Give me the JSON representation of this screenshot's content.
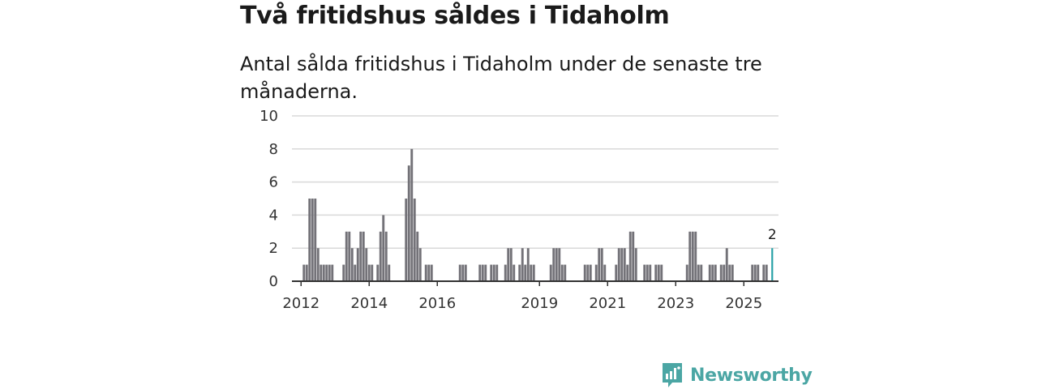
{
  "header": {
    "title": "Två fritidshus såldes i Tidaholm",
    "subtitle": "Antal sålda fritidshus i Tidaholm under de senaste tre månaderna."
  },
  "brand": {
    "name": "Newsworthy"
  },
  "colors": {
    "bar": "#737278",
    "highlight": "#2aa3a8",
    "grid": "#d9d9d9",
    "axis": "#333333",
    "brand": "#4ba6a4"
  },
  "chart_data": {
    "type": "bar",
    "title": "Två fritidshus såldes i Tidaholm",
    "subtitle": "Antal sålda fritidshus i Tidaholm under de senaste tre månaderna.",
    "xlabel": "",
    "ylabel": "",
    "ylim": [
      0,
      10
    ],
    "yticks": [
      0,
      2,
      4,
      6,
      8,
      10
    ],
    "x_tick_labels": [
      "2012",
      "2014",
      "2016",
      "2019",
      "2021",
      "2023",
      "2025"
    ],
    "x_tick_months": [
      1,
      25,
      49,
      85,
      109,
      133,
      157
    ],
    "start": "2012-01",
    "months_count": 168,
    "grid": true,
    "values": [
      0,
      0,
      1,
      1,
      5,
      5,
      5,
      2,
      1,
      1,
      1,
      1,
      1,
      0,
      0,
      0,
      1,
      3,
      3,
      2,
      1,
      2,
      3,
      3,
      2,
      1,
      1,
      0,
      1,
      3,
      4,
      3,
      1,
      0,
      0,
      0,
      0,
      0,
      5,
      7,
      8,
      5,
      3,
      2,
      0,
      1,
      1,
      1,
      0,
      0,
      0,
      0,
      0,
      0,
      0,
      0,
      0,
      1,
      1,
      1,
      0,
      0,
      0,
      0,
      1,
      1,
      1,
      0,
      1,
      1,
      1,
      0,
      0,
      1,
      2,
      2,
      1,
      0,
      1,
      2,
      1,
      2,
      1,
      1,
      0,
      0,
      0,
      0,
      0,
      1,
      2,
      2,
      2,
      1,
      1,
      0,
      0,
      0,
      0,
      0,
      0,
      1,
      1,
      1,
      0,
      1,
      2,
      2,
      1,
      0,
      0,
      0,
      1,
      2,
      2,
      2,
      1,
      3,
      3,
      2,
      0,
      0,
      1,
      1,
      1,
      0,
      1,
      1,
      1,
      0,
      0,
      0,
      0,
      0,
      0,
      0,
      0,
      1,
      3,
      3,
      3,
      1,
      1,
      0,
      0,
      1,
      1,
      1,
      0,
      1,
      1,
      2,
      1,
      1,
      0,
      0,
      0,
      0,
      0,
      0,
      1,
      1,
      1,
      0,
      1,
      1,
      0,
      2
    ],
    "highlight_last": true,
    "annotations": [
      {
        "label": "2"
      }
    ]
  }
}
